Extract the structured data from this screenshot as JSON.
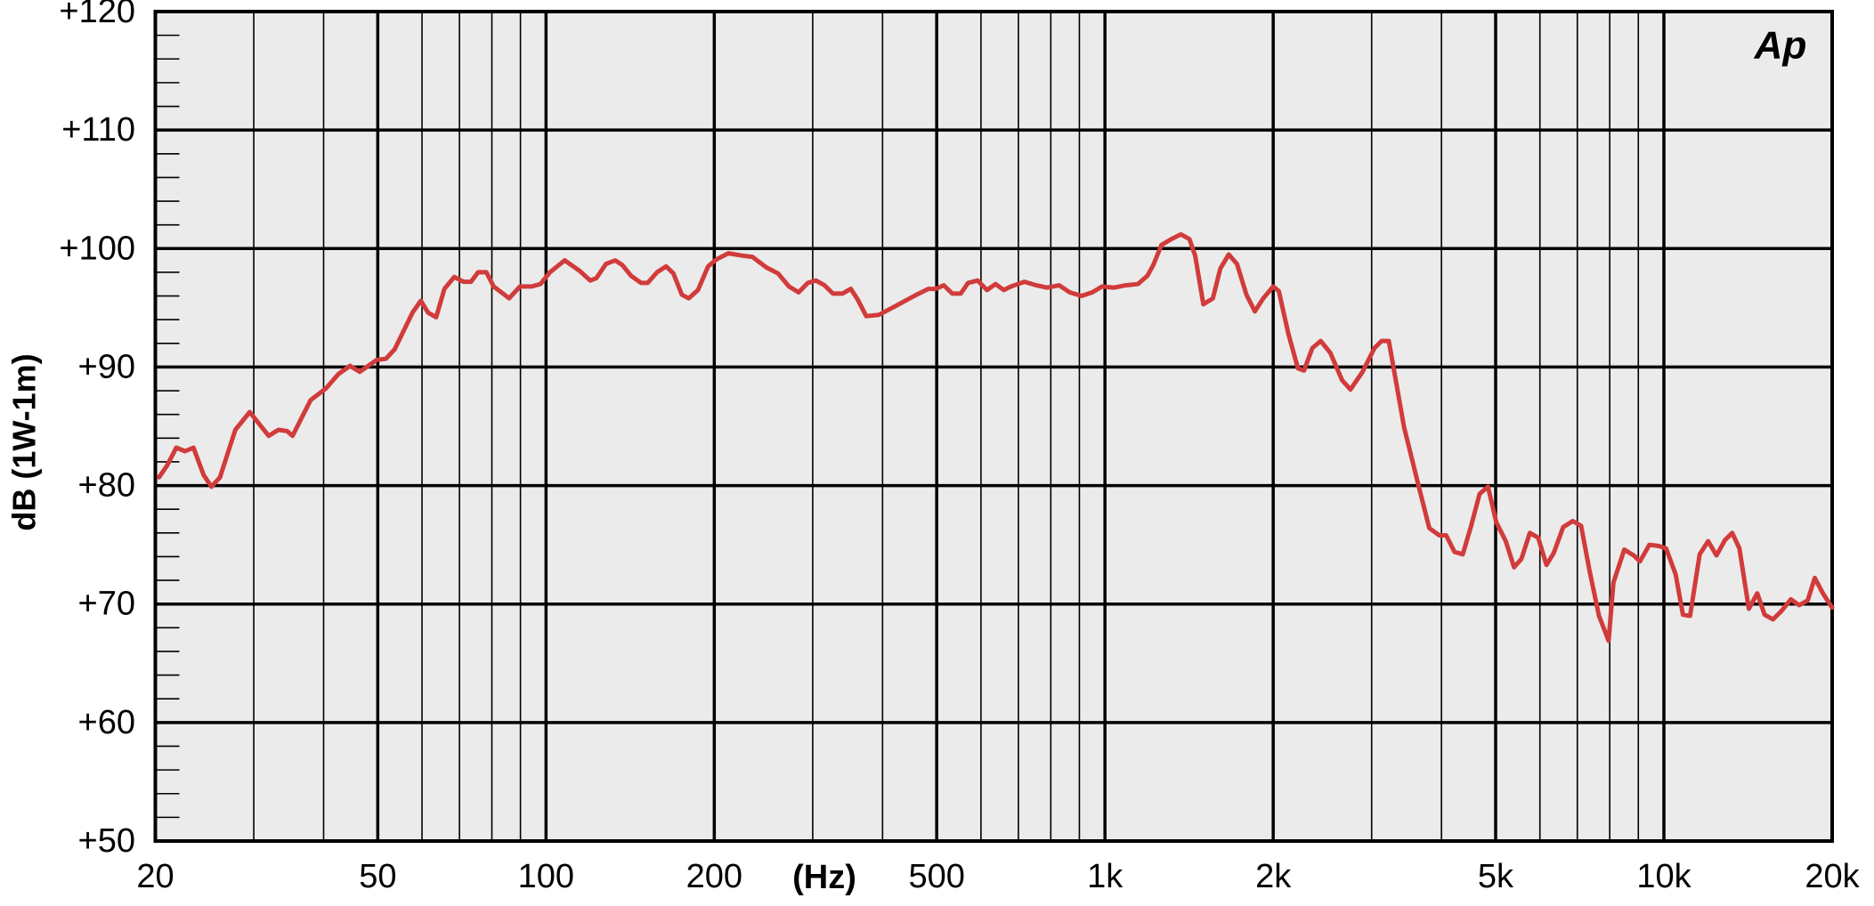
{
  "chart_data": {
    "type": "line",
    "x_label": "(Hz)",
    "y_label": "dB (1W-1m)",
    "logo": "Ap",
    "log_x": true,
    "grid": true,
    "color": "#d13b3b",
    "xlim": [
      20,
      20000
    ],
    "ylim": [
      50,
      120
    ],
    "xticks": [
      20,
      50,
      100,
      200,
      500,
      {
        "value": 1000,
        "label": "1k"
      },
      {
        "value": 2000,
        "label": "2k"
      },
      {
        "value": 5000,
        "label": "5k"
      },
      {
        "value": 10000,
        "label": "10k"
      },
      {
        "value": 20000,
        "label": "20k"
      }
    ],
    "xminor_ticks": [
      30,
      40,
      60,
      70,
      80,
      90,
      300,
      400,
      600,
      700,
      800,
      900,
      3000,
      4000,
      6000,
      7000,
      8000,
      9000
    ],
    "yticks": [
      {
        "value": 50,
        "label": "+50"
      },
      {
        "value": 60,
        "label": "+60"
      },
      {
        "value": 70,
        "label": "+70"
      },
      {
        "value": 80,
        "label": "+80"
      },
      {
        "value": 90,
        "label": "+90"
      },
      {
        "value": 100,
        "label": "+100"
      },
      {
        "value": 110,
        "label": "+110"
      },
      {
        "value": 120,
        "label": "+120"
      }
    ],
    "yminor_ticks": [
      52,
      54,
      56,
      58,
      62,
      64,
      66,
      68,
      72,
      74,
      76,
      78,
      82,
      84,
      86,
      88,
      92,
      94,
      96,
      98,
      102,
      104,
      106,
      108,
      112,
      114,
      116,
      118
    ],
    "x": [
      20.3,
      21,
      21.8,
      22.6,
      23.4,
      24.4,
      25.2,
      26.1,
      27.8,
      29.5,
      31.9,
      33.2,
      34.4,
      35.2,
      37.9,
      40.4,
      42.5,
      44.6,
      46.4,
      49.8,
      51.7,
      53.6,
      57.7,
      59.7,
      61.5,
      63.6,
      65.8,
      68.5,
      71.2,
      73.4,
      75.6,
      78.2,
      80.6,
      85.9,
      89.8,
      94.3,
      97.7,
      101.6,
      108,
      115,
      120,
      123,
      128,
      133,
      137,
      142,
      148,
      152,
      158,
      164,
      169,
      175,
      180,
      187,
      195,
      202,
      212,
      225,
      234,
      248,
      260,
      272,
      283,
      294,
      304,
      315,
      326,
      339,
      351,
      361,
      374,
      394,
      424,
      460,
      483,
      498,
      515,
      533,
      552,
      569,
      592,
      615,
      637,
      659,
      679,
      718,
      754,
      788,
      828,
      865,
      908,
      949,
      988,
      1038,
      1089,
      1145,
      1191,
      1220,
      1262,
      1315,
      1367,
      1416,
      1450,
      1500,
      1560,
      1608,
      1665,
      1723,
      1791,
      1854,
      1920,
      2000,
      2047,
      2129,
      2214,
      2270,
      2350,
      2432,
      2530,
      2656,
      2749,
      2890,
      3035,
      3126,
      3220,
      3430,
      3640,
      3805,
      3964,
      4077,
      4220,
      4367,
      4520,
      4680,
      4844,
      5013,
      5213,
      5395,
      5558,
      5756,
      5958,
      6165,
      6351,
      6605,
      6870,
      7111,
      7362,
      7655,
      7963,
      8123,
      8493,
      8830,
      9060,
      9420,
      9797,
      10090,
      10495,
      10815,
      11140,
      11590,
      12000,
      12420,
      12860,
      13250,
      13650,
      14190,
      14690,
      15140,
      15670,
      16220,
      16870,
      17460,
      18080,
      18620,
      19250,
      20000
    ],
    "values": [
      80.7,
      81.7,
      83.2,
      82.9,
      83.2,
      80.9,
      79.9,
      80.7,
      84.7,
      86.2,
      84.2,
      84.7,
      84.6,
      84.2,
      87.2,
      88.2,
      89.4,
      90.1,
      89.6,
      90.6,
      90.7,
      91.5,
      94.6,
      95.6,
      94.6,
      94.2,
      96.6,
      97.6,
      97.2,
      97.2,
      98.0,
      98.0,
      96.8,
      95.8,
      96.8,
      96.8,
      97.0,
      98.0,
      99.0,
      98.1,
      97.3,
      97.5,
      98.7,
      99.0,
      98.6,
      97.7,
      97.1,
      97.1,
      98.0,
      98.5,
      97.9,
      96.1,
      95.8,
      96.5,
      98.5,
      99.1,
      99.6,
      99.4,
      99.3,
      98.4,
      97.9,
      96.8,
      96.3,
      97.1,
      97.3,
      96.9,
      96.2,
      96.2,
      96.6,
      95.7,
      94.3,
      94.4,
      95.2,
      96.1,
      96.6,
      96.6,
      96.9,
      96.2,
      96.2,
      97.1,
      97.3,
      96.5,
      97.0,
      96.5,
      96.8,
      97.2,
      96.9,
      96.7,
      96.9,
      96.3,
      96.0,
      96.3,
      96.8,
      96.7,
      96.9,
      97.0,
      97.7,
      98.6,
      100.3,
      100.8,
      101.2,
      100.8,
      99.4,
      95.3,
      95.8,
      98.3,
      99.5,
      98.7,
      96.1,
      94.7,
      95.8,
      96.8,
      96.4,
      92.8,
      89.9,
      89.7,
      91.6,
      92.2,
      91.2,
      88.9,
      88.1,
      89.6,
      91.6,
      92.2,
      92.2,
      84.9,
      80.0,
      76.4,
      75.8,
      75.8,
      74.4,
      74.2,
      76.6,
      79.3,
      79.9,
      76.9,
      75.3,
      73.1,
      73.8,
      76.0,
      75.6,
      73.3,
      74.3,
      76.5,
      77.0,
      76.6,
      72.8,
      69.0,
      66.9,
      71.8,
      74.6,
      74.1,
      73.6,
      75.0,
      74.9,
      74.7,
      72.5,
      69.1,
      69.0,
      74.2,
      75.3,
      74.1,
      75.4,
      76.0,
      74.7,
      69.6,
      70.9,
      69.1,
      68.7,
      69.4,
      70.4,
      69.9,
      70.3,
      72.2,
      70.9,
      69.7
    ]
  }
}
